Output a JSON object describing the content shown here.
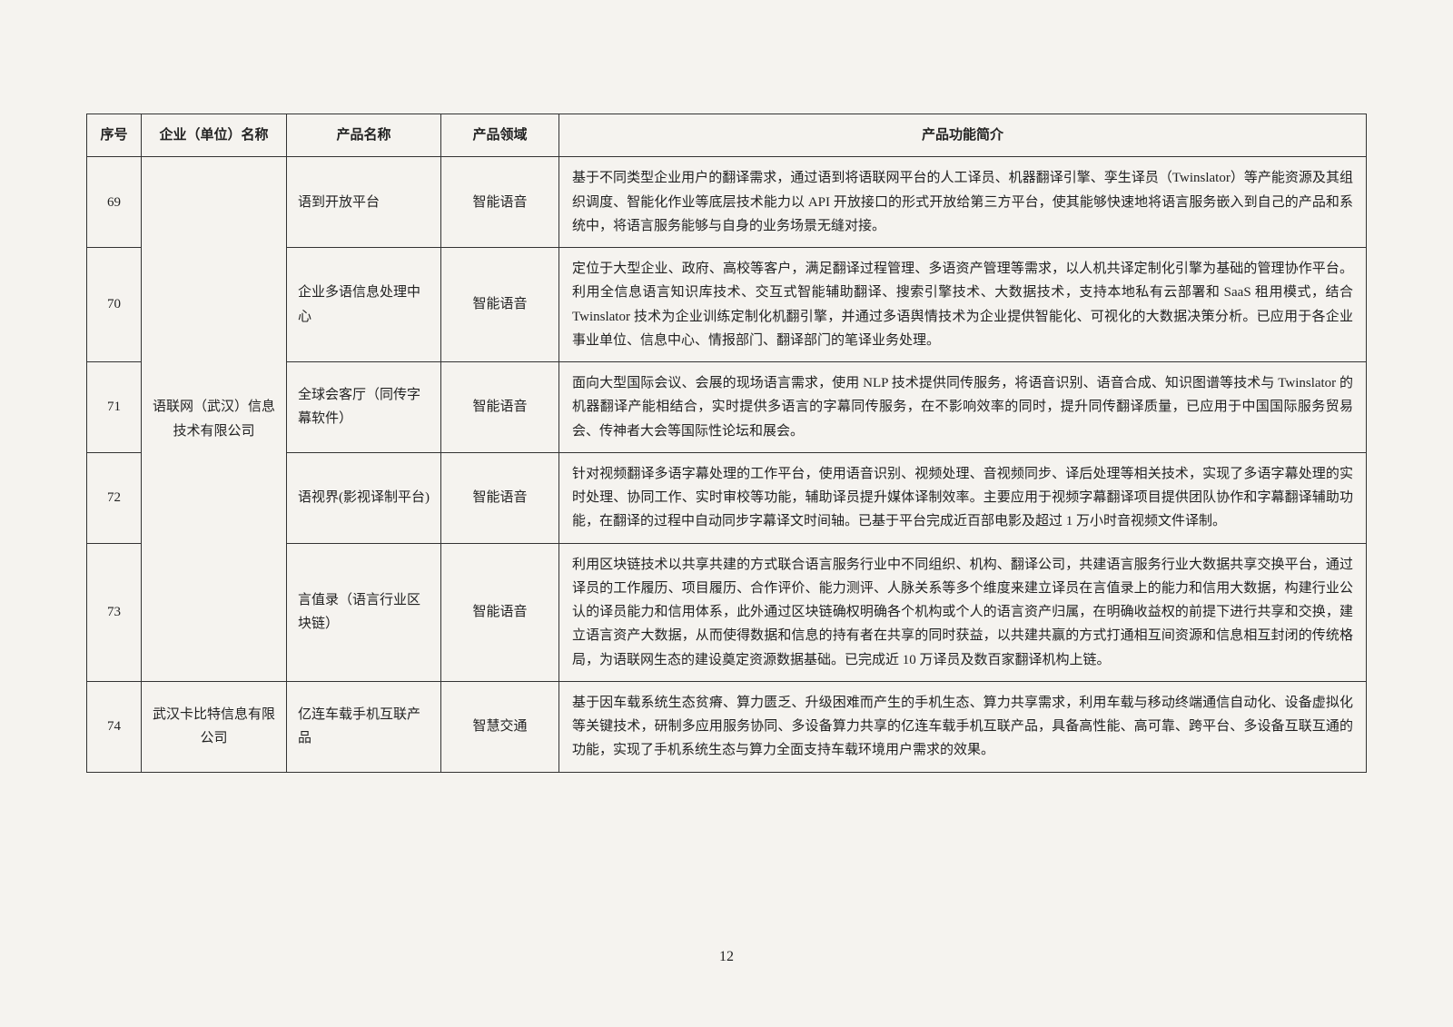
{
  "page_number": "12",
  "headers": {
    "seq": "序号",
    "company": "企业（单位）名称",
    "product": "产品名称",
    "domain": "产品领域",
    "desc": "产品功能简介"
  },
  "companies": [
    {
      "name": "语联网（武汉）信息技术有限公司",
      "rows": [
        {
          "seq": "69",
          "product": "语到开放平台",
          "domain": "智能语音",
          "desc": "基于不同类型企业用户的翻译需求，通过语到将语联网平台的人工译员、机器翻译引擎、孪生译员（Twinslator）等产能资源及其组织调度、智能化作业等底层技术能力以 API 开放接口的形式开放给第三方平台，使其能够快速地将语言服务嵌入到自己的产品和系统中，将语言服务能够与自身的业务场景无缝对接。"
        },
        {
          "seq": "70",
          "product": "企业多语信息处理中心",
          "domain": "智能语音",
          "desc": "定位于大型企业、政府、高校等客户，满足翻译过程管理、多语资产管理等需求，以人机共译定制化引擎为基础的管理协作平台。利用全信息语言知识库技术、交互式智能辅助翻译、搜索引擎技术、大数据技术，支持本地私有云部署和 SaaS 租用模式，结合 Twinslator 技术为企业训练定制化机翻引擎，并通过多语舆情技术为企业提供智能化、可视化的大数据决策分析。已应用于各企业事业单位、信息中心、情报部门、翻译部门的笔译业务处理。"
        },
        {
          "seq": "71",
          "product": "全球会客厅（同传字幕软件）",
          "domain": "智能语音",
          "desc": "面向大型国际会议、会展的现场语言需求，使用 NLP 技术提供同传服务，将语音识别、语音合成、知识图谱等技术与 Twinslator 的机器翻译产能相结合，实时提供多语言的字幕同传服务，在不影响效率的同时，提升同传翻译质量，已应用于中国国际服务贸易会、传神者大会等国际性论坛和展会。"
        },
        {
          "seq": "72",
          "product": "语视界(影视译制平台)",
          "domain": "智能语音",
          "desc": "针对视频翻译多语字幕处理的工作平台，使用语音识别、视频处理、音视频同步、译后处理等相关技术，实现了多语字幕处理的实时处理、协同工作、实时审校等功能，辅助译员提升媒体译制效率。主要应用于视频字幕翻译项目提供团队协作和字幕翻译辅助功能，在翻译的过程中自动同步字幕译文时间轴。已基于平台完成近百部电影及超过 1 万小时音视频文件译制。"
        },
        {
          "seq": "73",
          "product": "言值录（语言行业区块链）",
          "domain": "智能语音",
          "desc": "利用区块链技术以共享共建的方式联合语言服务行业中不同组织、机构、翻译公司，共建语言服务行业大数据共享交换平台，通过译员的工作履历、项目履历、合作评价、能力测评、人脉关系等多个维度来建立译员在言值录上的能力和信用大数据，构建行业公认的译员能力和信用体系，此外通过区块链确权明确各个机构或个人的语言资产归属，在明确收益权的前提下进行共享和交换，建立语言资产大数据，从而使得数据和信息的持有者在共享的同时获益，以共建共赢的方式打通相互间资源和信息相互封闭的传统格局，为语联网生态的建设奠定资源数据基础。已完成近 10 万译员及数百家翻译机构上链。"
        }
      ]
    },
    {
      "name": "武汉卡比特信息有限公司",
      "rows": [
        {
          "seq": "74",
          "product": "亿连车载手机互联产品",
          "domain": "智慧交通",
          "desc": "基于因车载系统生态贫瘠、算力匮乏、升级困难而产生的手机生态、算力共享需求，利用车载与移动终端通信自动化、设备虚拟化等关键技术，研制多应用服务协同、多设备算力共享的亿连车载手机互联产品，具备高性能、高可靠、跨平台、多设备互联互通的功能，实现了手机系统生态与算力全面支持车载环境用户需求的效果。"
        }
      ]
    }
  ]
}
